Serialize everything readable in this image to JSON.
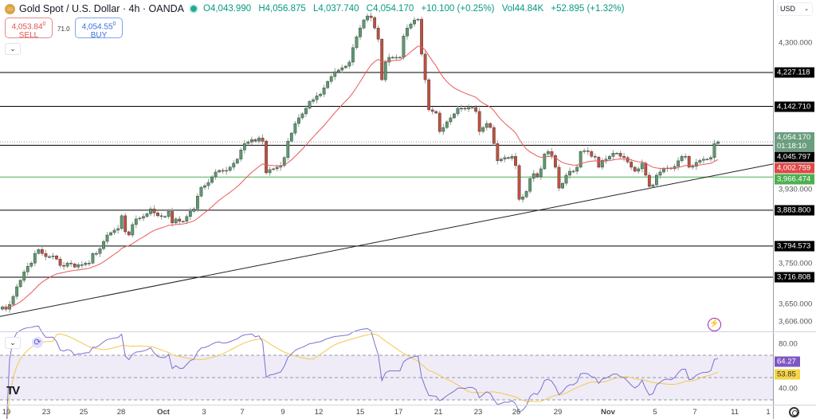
{
  "header": {
    "title": "Gold Spot / U.S. Dollar · 4h · OANDA",
    "open": "O4,043.990",
    "high": "H4,056.875",
    "low": "L4,037.740",
    "close": "C4,054.170",
    "change": "+10.100 (+0.25%)",
    "volume": "Vol44.84K",
    "vol_change": "+52.895 (+1.32%)"
  },
  "trade": {
    "sell_price": "4,053.84",
    "sell_sup": "0",
    "sell_label": "SELL",
    "spread": "71.0",
    "buy_price": "4,054.55",
    "buy_sup": "0",
    "buy_label": "BUY"
  },
  "currency": "USD",
  "price_axis": [
    {
      "v": 4300,
      "t": "4,300.000"
    },
    {
      "v": 3930,
      "t": "3,930.000"
    },
    {
      "v": 3750,
      "t": "3,750.000"
    },
    {
      "v": 3650,
      "t": "3,650.000"
    },
    {
      "v": 3606,
      "t": "3,606.000"
    }
  ],
  "levels": [
    {
      "v": 4227.118,
      "t": "4,227.118",
      "color": "#000000"
    },
    {
      "v": 4142.71,
      "t": "4,142.710",
      "color": "#000000"
    },
    {
      "v": 4045.797,
      "t": "4,045.797",
      "color": "#000000"
    },
    {
      "v": 3883.8,
      "t": "3,883.800",
      "color": "#000000"
    },
    {
      "v": 3794.573,
      "t": "3,794.573",
      "color": "#000000"
    },
    {
      "v": 3716.808,
      "t": "3,716.808",
      "color": "#000000"
    }
  ],
  "support_level": {
    "v": 3966.474,
    "t": "3,966.474",
    "color": "#4caf50"
  },
  "last_price": {
    "v": 4054.17,
    "t": "4,054.170",
    "countdown": "01:18:10",
    "color": "#6b9e7f"
  },
  "ema_label": {
    "v": 4002.759,
    "t": "4,002.759",
    "color": "#e04848"
  },
  "rsi": {
    "axis": [
      {
        "v": 80,
        "t": "80.00"
      },
      {
        "v": 40,
        "t": "40.00"
      }
    ],
    "rsi_value": {
      "v": 64.27,
      "t": "64.27",
      "color": "#7e57c2"
    },
    "ma_value": {
      "v": 53.85,
      "t": "53.85",
      "color": "#f5d547"
    }
  },
  "time_axis": [
    "19",
    "23",
    "25",
    "28",
    "Oct",
    "3",
    "7",
    "9",
    "12",
    "15",
    "17",
    "21",
    "23",
    "26",
    "29",
    "Nov",
    "5",
    "7",
    "11",
    "1"
  ],
  "chart_data": {
    "type": "candlestick",
    "symbol": "XAUUSD 4h",
    "up_color": "#5b9a70",
    "down_color": "#c0503f",
    "ylim": [
      3590,
      4390
    ],
    "trendline": [
      3619,
      3999
    ],
    "close": [
      3643,
      3637,
      3649,
      3669,
      3693,
      3709,
      3730,
      3744,
      3752,
      3776,
      3786,
      3776,
      3768,
      3768,
      3770,
      3762,
      3746,
      3744,
      3752,
      3750,
      3742,
      3748,
      3748,
      3752,
      3752,
      3776,
      3776,
      3788,
      3806,
      3822,
      3828,
      3834,
      3838,
      3870,
      3830,
      3822,
      3848,
      3862,
      3864,
      3868,
      3875,
      3887,
      3877,
      3870,
      3868,
      3868,
      3881,
      3852,
      3862,
      3856,
      3856,
      3868,
      3881,
      3887,
      3919,
      3941,
      3945,
      3953,
      3967,
      3979,
      3983,
      3981,
      3983,
      3991,
      4001,
      4011,
      4034,
      4050,
      4054,
      4060,
      4056,
      4064,
      4056,
      3977,
      3985,
      3987,
      3991,
      3995,
      4015,
      4056,
      4076,
      4100,
      4114,
      4124,
      4138,
      4155,
      4159,
      4169,
      4173,
      4189,
      4205,
      4217,
      4229,
      4233,
      4239,
      4243,
      4253,
      4289,
      4316,
      4338,
      4358,
      4368,
      4364,
      4338,
      4310,
      4209,
      4253,
      4265,
      4265,
      4265,
      4265,
      4318,
      4338,
      4348,
      4358,
      4360,
      4273,
      4209,
      4134,
      4130,
      4126,
      4080,
      4090,
      4104,
      4114,
      4124,
      4138,
      4138,
      4136,
      4140,
      4140,
      4130,
      4080,
      4090,
      4100,
      4090,
      4050,
      4007,
      4011,
      4015,
      4013,
      4018,
      3995,
      3911,
      3917,
      3931,
      3963,
      3975,
      3967,
      3987,
      4024,
      4030,
      4020,
      3991,
      3939,
      3951,
      3971,
      3981,
      3981,
      3991,
      4030,
      4032,
      4030,
      4018,
      4016,
      3991,
      4008,
      4011,
      4018,
      4026,
      4026,
      4018,
      4015,
      4004,
      3991,
      3981,
      3987,
      4001,
      3971,
      3943,
      3947,
      3971,
      3979,
      3987,
      3989,
      3987,
      3993,
      4007,
      4018,
      4018,
      3991,
      3993,
      4003,
      4008,
      4011,
      4011,
      4015,
      4050,
      4054.17
    ]
  }
}
